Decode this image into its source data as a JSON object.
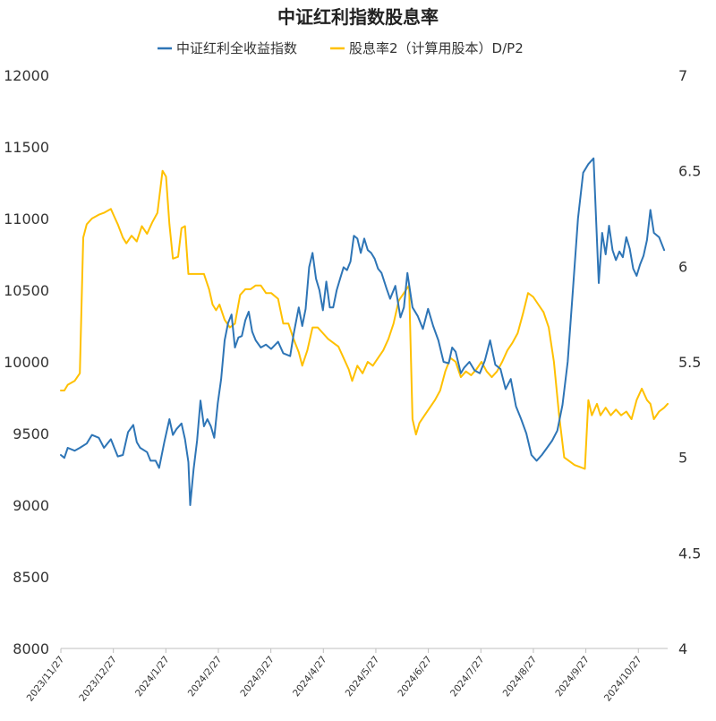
{
  "chart_data": {
    "type": "line",
    "title": "中证红利指数股息率",
    "legend_position": "top-center",
    "grid": false,
    "x_tick_labels": [
      "2023/11/27",
      "2023/12/27",
      "2024/1/27",
      "2024/2/27",
      "2024/3/27",
      "2024/4/27",
      "2024/5/27",
      "2024/6/27",
      "2024/7/27",
      "2024/8/27",
      "2024/9/27",
      "2024/10/27"
    ],
    "x_range": [
      "2023/11/27",
      "2024/11/13"
    ],
    "y_left": {
      "min": 8000,
      "max": 12000,
      "ticks": [
        "8000",
        "8500",
        "9000",
        "9500",
        "10000",
        "10500",
        "11000",
        "11500",
        "12000"
      ]
    },
    "y_right": {
      "min": 4,
      "max": 7,
      "ticks": [
        "4",
        "4.5",
        "5",
        "5.5",
        "6",
        "6.5",
        "7"
      ]
    },
    "series": [
      {
        "name": "中证红利全收益指数",
        "axis": "left",
        "color": "#2E75B6",
        "points": [
          [
            "2023/11/27",
            9350
          ],
          [
            "2023/11/29",
            9330
          ],
          [
            "2023/12/1",
            9400
          ],
          [
            "2023/12/5",
            9380
          ],
          [
            "2023/12/8",
            9400
          ],
          [
            "2023/12/12",
            9430
          ],
          [
            "2023/12/15",
            9490
          ],
          [
            "2023/12/19",
            9470
          ],
          [
            "2023/12/22",
            9400
          ],
          [
            "2023/12/26",
            9460
          ],
          [
            "2023/12/28",
            9400
          ],
          [
            "2023/12/30",
            9340
          ],
          [
            "2024/1/2",
            9350
          ],
          [
            "2024/1/5",
            9510
          ],
          [
            "2024/1/8",
            9560
          ],
          [
            "2024/1/10",
            9440
          ],
          [
            "2024/1/12",
            9400
          ],
          [
            "2024/1/16",
            9370
          ],
          [
            "2024/1/18",
            9310
          ],
          [
            "2024/1/21",
            9310
          ],
          [
            "2024/1/23",
            9260
          ],
          [
            "2024/1/26",
            9440
          ],
          [
            "2024/1/29",
            9600
          ],
          [
            "2024/1/31",
            9490
          ],
          [
            "2024/2/2",
            9530
          ],
          [
            "2024/2/5",
            9570
          ],
          [
            "2024/2/7",
            9460
          ],
          [
            "2024/2/9",
            9300
          ],
          [
            "2024/2/10",
            9000
          ],
          [
            "2024/2/12",
            9250
          ],
          [
            "2024/2/14",
            9450
          ],
          [
            "2024/2/16",
            9730
          ],
          [
            "2024/2/18",
            9550
          ],
          [
            "2024/2/20",
            9600
          ],
          [
            "2024/2/22",
            9550
          ],
          [
            "2024/2/24",
            9470
          ],
          [
            "2024/2/26",
            9710
          ],
          [
            "2024/2/28",
            9880
          ],
          [
            "2024/3/1",
            10150
          ],
          [
            "2024/3/3",
            10270
          ],
          [
            "2024/3/5",
            10330
          ],
          [
            "2024/3/7",
            10100
          ],
          [
            "2024/3/9",
            10170
          ],
          [
            "2024/3/11",
            10180
          ],
          [
            "2024/3/13",
            10290
          ],
          [
            "2024/3/15",
            10350
          ],
          [
            "2024/3/17",
            10210
          ],
          [
            "2024/3/19",
            10150
          ],
          [
            "2024/3/22",
            10100
          ],
          [
            "2024/3/25",
            10120
          ],
          [
            "2024/3/28",
            10090
          ],
          [
            "2024/4/1",
            10140
          ],
          [
            "2024/4/4",
            10060
          ],
          [
            "2024/4/8",
            10040
          ],
          [
            "2024/4/10",
            10190
          ],
          [
            "2024/4/13",
            10380
          ],
          [
            "2024/4/15",
            10250
          ],
          [
            "2024/4/17",
            10370
          ],
          [
            "2024/4/19",
            10660
          ],
          [
            "2024/4/21",
            10760
          ],
          [
            "2024/4/23",
            10580
          ],
          [
            "2024/4/25",
            10500
          ],
          [
            "2024/4/27",
            10360
          ],
          [
            "2024/4/29",
            10560
          ],
          [
            "2024/5/1",
            10380
          ],
          [
            "2024/5/3",
            10380
          ],
          [
            "2024/5/5",
            10500
          ],
          [
            "2024/5/7",
            10580
          ],
          [
            "2024/5/9",
            10660
          ],
          [
            "2024/5/11",
            10640
          ],
          [
            "2024/5/13",
            10700
          ],
          [
            "2024/5/15",
            10880
          ],
          [
            "2024/5/17",
            10860
          ],
          [
            "2024/5/19",
            10760
          ],
          [
            "2024/5/21",
            10860
          ],
          [
            "2024/5/23",
            10780
          ],
          [
            "2024/5/25",
            10760
          ],
          [
            "2024/5/27",
            10720
          ],
          [
            "2024/5/29",
            10650
          ],
          [
            "2024/5/31",
            10620
          ],
          [
            "2024/6/3",
            10510
          ],
          [
            "2024/6/5",
            10440
          ],
          [
            "2024/6/8",
            10530
          ],
          [
            "2024/6/11",
            10310
          ],
          [
            "2024/6/13",
            10380
          ],
          [
            "2024/6/15",
            10620
          ],
          [
            "2024/6/18",
            10380
          ],
          [
            "2024/6/21",
            10320
          ],
          [
            "2024/6/24",
            10230
          ],
          [
            "2024/6/27",
            10370
          ],
          [
            "2024/6/30",
            10250
          ],
          [
            "2024/7/3",
            10150
          ],
          [
            "2024/7/6",
            10000
          ],
          [
            "2024/7/9",
            9990
          ],
          [
            "2024/7/11",
            10100
          ],
          [
            "2024/7/13",
            10070
          ],
          [
            "2024/7/16",
            9920
          ],
          [
            "2024/7/18",
            9960
          ],
          [
            "2024/7/21",
            10000
          ],
          [
            "2024/7/24",
            9940
          ],
          [
            "2024/7/27",
            9920
          ],
          [
            "2024/7/30",
            10010
          ],
          [
            "2024/8/2",
            10150
          ],
          [
            "2024/8/5",
            9980
          ],
          [
            "2024/8/8",
            9950
          ],
          [
            "2024/8/11",
            9810
          ],
          [
            "2024/8/14",
            9880
          ],
          [
            "2024/8/17",
            9690
          ],
          [
            "2024/8/20",
            9600
          ],
          [
            "2024/8/23",
            9500
          ],
          [
            "2024/8/26",
            9350
          ],
          [
            "2024/8/29",
            9310
          ],
          [
            "2024/9/1",
            9350
          ],
          [
            "2024/9/4",
            9400
          ],
          [
            "2024/9/7",
            9450
          ],
          [
            "2024/9/10",
            9520
          ],
          [
            "2024/9/13",
            9700
          ],
          [
            "2024/9/16",
            10000
          ],
          [
            "2024/9/19",
            10500
          ],
          [
            "2024/9/22",
            11000
          ],
          [
            "2024/9/25",
            11320
          ],
          [
            "2024/9/28",
            11380
          ],
          [
            "2024/10/1",
            11420
          ],
          [
            "2024/10/4",
            10550
          ],
          [
            "2024/10/6",
            10900
          ],
          [
            "2024/10/8",
            10750
          ],
          [
            "2024/10/10",
            10950
          ],
          [
            "2024/10/12",
            10780
          ],
          [
            "2024/10/14",
            10710
          ],
          [
            "2024/10/16",
            10770
          ],
          [
            "2024/10/18",
            10730
          ],
          [
            "2024/10/20",
            10870
          ],
          [
            "2024/10/22",
            10790
          ],
          [
            "2024/10/24",
            10650
          ],
          [
            "2024/10/26",
            10600
          ],
          [
            "2024/10/28",
            10680
          ],
          [
            "2024/10/30",
            10740
          ],
          [
            "2024/11/1",
            10850
          ],
          [
            "2024/11/3",
            11060
          ],
          [
            "2024/11/5",
            10900
          ],
          [
            "2024/11/8",
            10870
          ],
          [
            "2024/11/11",
            10780
          ]
        ]
      },
      {
        "name": "股息率2（计算用股本）D/P2",
        "axis": "right",
        "color": "#FFC000",
        "points": [
          [
            "2023/11/27",
            5.35
          ],
          [
            "2023/11/29",
            5.35
          ],
          [
            "2023/12/1",
            5.38
          ],
          [
            "2023/12/5",
            5.4
          ],
          [
            "2023/12/8",
            5.44
          ],
          [
            "2023/12/10",
            6.15
          ],
          [
            "2023/12/12",
            6.22
          ],
          [
            "2023/12/15",
            6.25
          ],
          [
            "2023/12/19",
            6.27
          ],
          [
            "2023/12/22",
            6.28
          ],
          [
            "2023/12/26",
            6.3
          ],
          [
            "2023/12/28",
            6.26
          ],
          [
            "2023/12/30",
            6.22
          ],
          [
            "2024/1/2",
            6.15
          ],
          [
            "2024/1/4",
            6.12
          ],
          [
            "2024/1/7",
            6.16
          ],
          [
            "2024/1/10",
            6.13
          ],
          [
            "2024/1/13",
            6.21
          ],
          [
            "2024/1/16",
            6.17
          ],
          [
            "2024/1/19",
            6.23
          ],
          [
            "2024/1/22",
            6.28
          ],
          [
            "2024/1/25",
            6.5
          ],
          [
            "2024/1/27",
            6.47
          ],
          [
            "2024/1/29",
            6.22
          ],
          [
            "2024/1/31",
            6.04
          ],
          [
            "2024/2/3",
            6.05
          ],
          [
            "2024/2/5",
            6.2
          ],
          [
            "2024/2/7",
            6.21
          ],
          [
            "2024/2/9",
            5.96
          ],
          [
            "2024/2/12",
            5.96
          ],
          [
            "2024/2/15",
            5.96
          ],
          [
            "2024/2/18",
            5.96
          ],
          [
            "2024/2/21",
            5.88
          ],
          [
            "2024/2/23",
            5.8
          ],
          [
            "2024/2/25",
            5.77
          ],
          [
            "2024/2/27",
            5.8
          ],
          [
            "2024/3/1",
            5.72
          ],
          [
            "2024/3/4",
            5.68
          ],
          [
            "2024/3/7",
            5.7
          ],
          [
            "2024/3/10",
            5.85
          ],
          [
            "2024/3/13",
            5.88
          ],
          [
            "2024/3/16",
            5.88
          ],
          [
            "2024/3/19",
            5.9
          ],
          [
            "2024/3/22",
            5.9
          ],
          [
            "2024/3/25",
            5.86
          ],
          [
            "2024/3/28",
            5.86
          ],
          [
            "2024/4/1",
            5.83
          ],
          [
            "2024/4/4",
            5.7
          ],
          [
            "2024/4/7",
            5.7
          ],
          [
            "2024/4/10",
            5.62
          ],
          [
            "2024/4/13",
            5.55
          ],
          [
            "2024/4/15",
            5.48
          ],
          [
            "2024/4/18",
            5.56
          ],
          [
            "2024/4/21",
            5.68
          ],
          [
            "2024/4/24",
            5.68
          ],
          [
            "2024/4/27",
            5.65
          ],
          [
            "2024/4/30",
            5.62
          ],
          [
            "2024/5/3",
            5.6
          ],
          [
            "2024/5/6",
            5.58
          ],
          [
            "2024/5/9",
            5.52
          ],
          [
            "2024/5/12",
            5.46
          ],
          [
            "2024/5/14",
            5.4
          ],
          [
            "2024/5/17",
            5.48
          ],
          [
            "2024/5/20",
            5.44
          ],
          [
            "2024/5/23",
            5.5
          ],
          [
            "2024/5/26",
            5.48
          ],
          [
            "2024/5/29",
            5.52
          ],
          [
            "2024/6/1",
            5.56
          ],
          [
            "2024/6/4",
            5.62
          ],
          [
            "2024/6/7",
            5.7
          ],
          [
            "2024/6/10",
            5.82
          ],
          [
            "2024/6/13",
            5.86
          ],
          [
            "2024/6/16",
            5.9
          ],
          [
            "2024/6/18",
            5.2
          ],
          [
            "2024/6/20",
            5.12
          ],
          [
            "2024/6/22",
            5.18
          ],
          [
            "2024/6/25",
            5.22
          ],
          [
            "2024/6/28",
            5.26
          ],
          [
            "2024/7/1",
            5.3
          ],
          [
            "2024/7/4",
            5.35
          ],
          [
            "2024/7/7",
            5.45
          ],
          [
            "2024/7/10",
            5.52
          ],
          [
            "2024/7/13",
            5.5
          ],
          [
            "2024/7/16",
            5.42
          ],
          [
            "2024/7/19",
            5.45
          ],
          [
            "2024/7/22",
            5.43
          ],
          [
            "2024/7/25",
            5.46
          ],
          [
            "2024/7/28",
            5.5
          ],
          [
            "2024/7/31",
            5.45
          ],
          [
            "2024/8/3",
            5.42
          ],
          [
            "2024/8/6",
            5.45
          ],
          [
            "2024/8/9",
            5.5
          ],
          [
            "2024/8/12",
            5.56
          ],
          [
            "2024/8/15",
            5.6
          ],
          [
            "2024/8/18",
            5.65
          ],
          [
            "2024/8/21",
            5.75
          ],
          [
            "2024/8/24",
            5.86
          ],
          [
            "2024/8/27",
            5.84
          ],
          [
            "2024/8/30",
            5.8
          ],
          [
            "2024/9/2",
            5.76
          ],
          [
            "2024/9/5",
            5.68
          ],
          [
            "2024/9/8",
            5.5
          ],
          [
            "2024/9/11",
            5.22
          ],
          [
            "2024/9/14",
            5.0
          ],
          [
            "2024/9/17",
            4.98
          ],
          [
            "2024/9/20",
            4.96
          ],
          [
            "2024/9/23",
            4.95
          ],
          [
            "2024/9/26",
            4.94
          ],
          [
            "2024/9/28",
            5.3
          ],
          [
            "2024/9/30",
            5.22
          ],
          [
            "2024/10/3",
            5.28
          ],
          [
            "2024/10/5",
            5.22
          ],
          [
            "2024/10/8",
            5.26
          ],
          [
            "2024/10/11",
            5.22
          ],
          [
            "2024/10/14",
            5.25
          ],
          [
            "2024/10/17",
            5.22
          ],
          [
            "2024/10/20",
            5.24
          ],
          [
            "2024/10/23",
            5.2
          ],
          [
            "2024/10/26",
            5.3
          ],
          [
            "2024/10/29",
            5.36
          ],
          [
            "2024/11/1",
            5.3
          ],
          [
            "2024/11/3",
            5.28
          ],
          [
            "2024/11/5",
            5.2
          ],
          [
            "2024/11/8",
            5.24
          ],
          [
            "2024/11/11",
            5.26
          ],
          [
            "2024/11/13",
            5.28
          ]
        ]
      }
    ]
  }
}
